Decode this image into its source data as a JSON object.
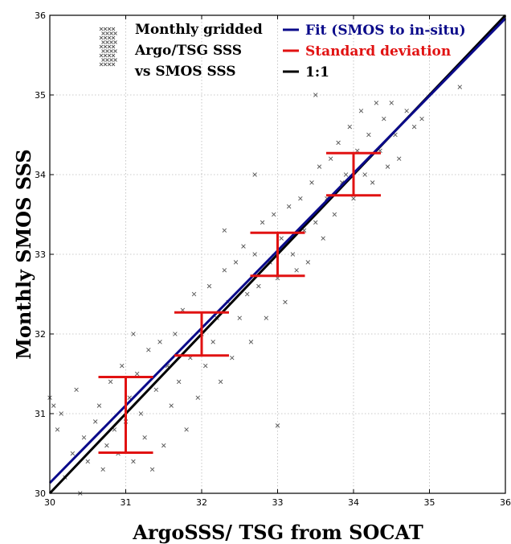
{
  "chart_data": {
    "type": "scatter",
    "xlabel": "ArgoSSS/ TSG from SOCAT",
    "ylabel": "Monthly SMOS SSS",
    "xlim": [
      30,
      36
    ],
    "ylim": [
      30,
      36
    ],
    "x_ticks": [
      "30",
      "31",
      "32",
      "33",
      "34",
      "35",
      "36"
    ],
    "y_ticks": [
      "30",
      "31",
      "32",
      "33",
      "34",
      "35",
      "36"
    ],
    "grid": true,
    "legend_position": "top",
    "colors": {
      "scatter": "#555555",
      "fit": "#0a0a8a",
      "std": "#e11212",
      "one_to_one": "#000000"
    },
    "legend": {
      "scatter_lines": [
        "Monthly gridded",
        "Argo/TSG SSS",
        "vs SMOS SSS"
      ],
      "fit": "Fit (SMOS to in-situ)",
      "std": "Standard deviation",
      "one_to_one": "1:1"
    },
    "fit_line": {
      "x": [
        30,
        36
      ],
      "y": [
        30.13,
        35.96
      ]
    },
    "one_to_one_line": {
      "x": [
        30,
        36
      ],
      "y": [
        30,
        36
      ]
    },
    "std_bars": [
      {
        "x": 31,
        "low": 30.51,
        "high": 31.46
      },
      {
        "x": 32,
        "low": 31.73,
        "high": 32.27
      },
      {
        "x": 33,
        "low": 32.73,
        "high": 33.27
      },
      {
        "x": 34,
        "low": 33.74,
        "high": 34.27
      }
    ],
    "series": [
      {
        "values": [
          [
            30.0,
            31.2
          ],
          [
            30.05,
            31.1
          ],
          [
            30.1,
            30.8
          ],
          [
            30.15,
            31.0
          ],
          [
            30.2,
            30.2
          ],
          [
            30.3,
            30.5
          ],
          [
            30.35,
            31.3
          ],
          [
            30.4,
            30.0
          ],
          [
            30.45,
            30.7
          ],
          [
            30.5,
            30.4
          ],
          [
            30.6,
            30.9
          ],
          [
            30.65,
            31.1
          ],
          [
            30.7,
            30.3
          ],
          [
            30.75,
            30.6
          ],
          [
            30.8,
            31.4
          ],
          [
            30.85,
            30.8
          ],
          [
            30.9,
            30.5
          ],
          [
            30.95,
            31.6
          ],
          [
            31.0,
            30.9
          ],
          [
            31.05,
            31.2
          ],
          [
            31.1,
            30.4
          ],
          [
            31.15,
            31.5
          ],
          [
            31.2,
            31.0
          ],
          [
            31.25,
            30.7
          ],
          [
            31.3,
            31.8
          ],
          [
            31.35,
            30.3
          ],
          [
            31.4,
            31.3
          ],
          [
            31.45,
            31.9
          ],
          [
            31.5,
            30.6
          ],
          [
            31.55,
            31.6
          ],
          [
            31.6,
            31.1
          ],
          [
            31.65,
            32.0
          ],
          [
            31.7,
            31.4
          ],
          [
            31.75,
            32.3
          ],
          [
            31.8,
            30.8
          ],
          [
            31.85,
            31.7
          ],
          [
            31.9,
            32.5
          ],
          [
            31.95,
            31.2
          ],
          [
            32.0,
            32.0
          ],
          [
            32.05,
            31.6
          ],
          [
            32.1,
            32.6
          ],
          [
            32.15,
            31.9
          ],
          [
            32.2,
            32.2
          ],
          [
            32.25,
            31.4
          ],
          [
            32.3,
            32.8
          ],
          [
            32.35,
            32.4
          ],
          [
            32.4,
            31.7
          ],
          [
            32.45,
            32.9
          ],
          [
            32.5,
            32.2
          ],
          [
            32.55,
            33.1
          ],
          [
            32.6,
            32.5
          ],
          [
            32.65,
            31.9
          ],
          [
            32.7,
            33.0
          ],
          [
            32.75,
            32.6
          ],
          [
            32.8,
            33.4
          ],
          [
            32.85,
            32.2
          ],
          [
            32.9,
            32.9
          ],
          [
            32.95,
            33.5
          ],
          [
            33.0,
            32.7
          ],
          [
            33.05,
            33.2
          ],
          [
            33.1,
            32.4
          ],
          [
            33.15,
            33.6
          ],
          [
            33.2,
            33.0
          ],
          [
            33.25,
            32.8
          ],
          [
            33.3,
            33.7
          ],
          [
            33.35,
            33.3
          ],
          [
            33.4,
            32.9
          ],
          [
            33.45,
            33.9
          ],
          [
            33.5,
            33.4
          ],
          [
            33.55,
            34.1
          ],
          [
            33.6,
            33.2
          ],
          [
            33.65,
            33.7
          ],
          [
            33.7,
            34.2
          ],
          [
            33.75,
            33.5
          ],
          [
            33.8,
            34.4
          ],
          [
            33.85,
            33.9
          ],
          [
            33.9,
            34.0
          ],
          [
            33.95,
            34.6
          ],
          [
            34.0,
            33.7
          ],
          [
            34.05,
            34.3
          ],
          [
            34.1,
            34.8
          ],
          [
            34.15,
            34.0
          ],
          [
            34.2,
            34.5
          ],
          [
            34.25,
            33.9
          ],
          [
            34.3,
            34.9
          ],
          [
            34.35,
            34.3
          ],
          [
            34.4,
            34.7
          ],
          [
            34.45,
            34.1
          ],
          [
            34.5,
            34.9
          ],
          [
            34.55,
            34.5
          ],
          [
            34.6,
            34.2
          ],
          [
            34.7,
            34.8
          ],
          [
            34.8,
            34.6
          ],
          [
            34.9,
            34.7
          ],
          [
            35.4,
            35.1
          ],
          [
            33.5,
            35.0
          ],
          [
            32.3,
            33.3
          ],
          [
            33.0,
            30.85
          ],
          [
            31.1,
            32.0
          ],
          [
            32.7,
            34.0
          ]
        ]
      }
    ]
  }
}
